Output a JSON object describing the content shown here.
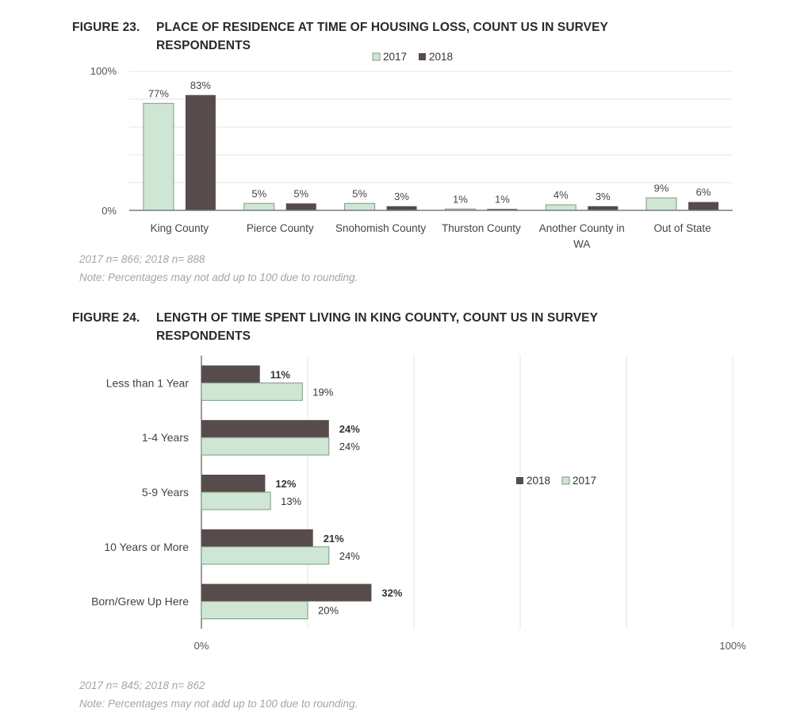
{
  "colors": {
    "c2017": "#cfe6d4",
    "c2018": "#574c4b",
    "stroke2017": "#7c9a82",
    "grid": "#e4e4e4",
    "axis": "#7a7a7a"
  },
  "figure23": {
    "number": "FIGURE 23.",
    "title": "PLACE OF RESIDENCE AT TIME OF HOUSING LOSS, COUNT US IN SURVEY RESPONDENTS",
    "sample": "2017 n= 866; 2018 n= 888",
    "note": "Note: Percentages may not add up to 100 due to rounding."
  },
  "figure24": {
    "number": "FIGURE 24.",
    "title": "LENGTH OF TIME SPENT LIVING IN KING COUNTY, COUNT US IN SURVEY RESPONDENTS",
    "sample": "2017 n= 845; 2018 n= 862",
    "note": "Note: Percentages may not add up to 100 due to rounding."
  },
  "chart_data": [
    {
      "type": "bar",
      "orientation": "vertical",
      "categories": [
        "King County",
        "Pierce County",
        "Snohomish County",
        "Thurston County",
        "Another County in WA",
        "Out of State"
      ],
      "series": [
        {
          "name": "2017",
          "values": [
            77,
            5,
            5,
            1,
            4,
            9
          ],
          "labels": [
            "77%",
            "5%",
            "5%",
            "1%",
            "4%",
            "9%"
          ]
        },
        {
          "name": "2018",
          "values": [
            83,
            5,
            3,
            1,
            3,
            6
          ],
          "labels": [
            "83%",
            "5%",
            "3%",
            "1%",
            "3%",
            "6%"
          ]
        }
      ],
      "ylim": [
        0,
        100
      ],
      "ytick_labels": [
        "0%",
        "100%"
      ],
      "grid": true,
      "legend_position": "top-center"
    },
    {
      "type": "bar",
      "orientation": "horizontal",
      "categories": [
        "Less than 1 Year",
        "1-4 Years",
        "5-9 Years",
        "10 Years or More",
        "Born/Grew Up Here"
      ],
      "series": [
        {
          "name": "2018",
          "values": [
            11,
            24,
            12,
            21,
            32
          ],
          "labels": [
            "11%",
            "24%",
            "12%",
            "21%",
            "32%"
          ]
        },
        {
          "name": "2017",
          "values": [
            19,
            24,
            13,
            24,
            20
          ],
          "labels": [
            "19%",
            "24%",
            "13%",
            "24%",
            "20%"
          ]
        }
      ],
      "xlim": [
        0,
        100
      ],
      "xtick_labels": [
        "0%",
        "100%"
      ],
      "grid": true,
      "legend_position": "right-middle"
    }
  ]
}
